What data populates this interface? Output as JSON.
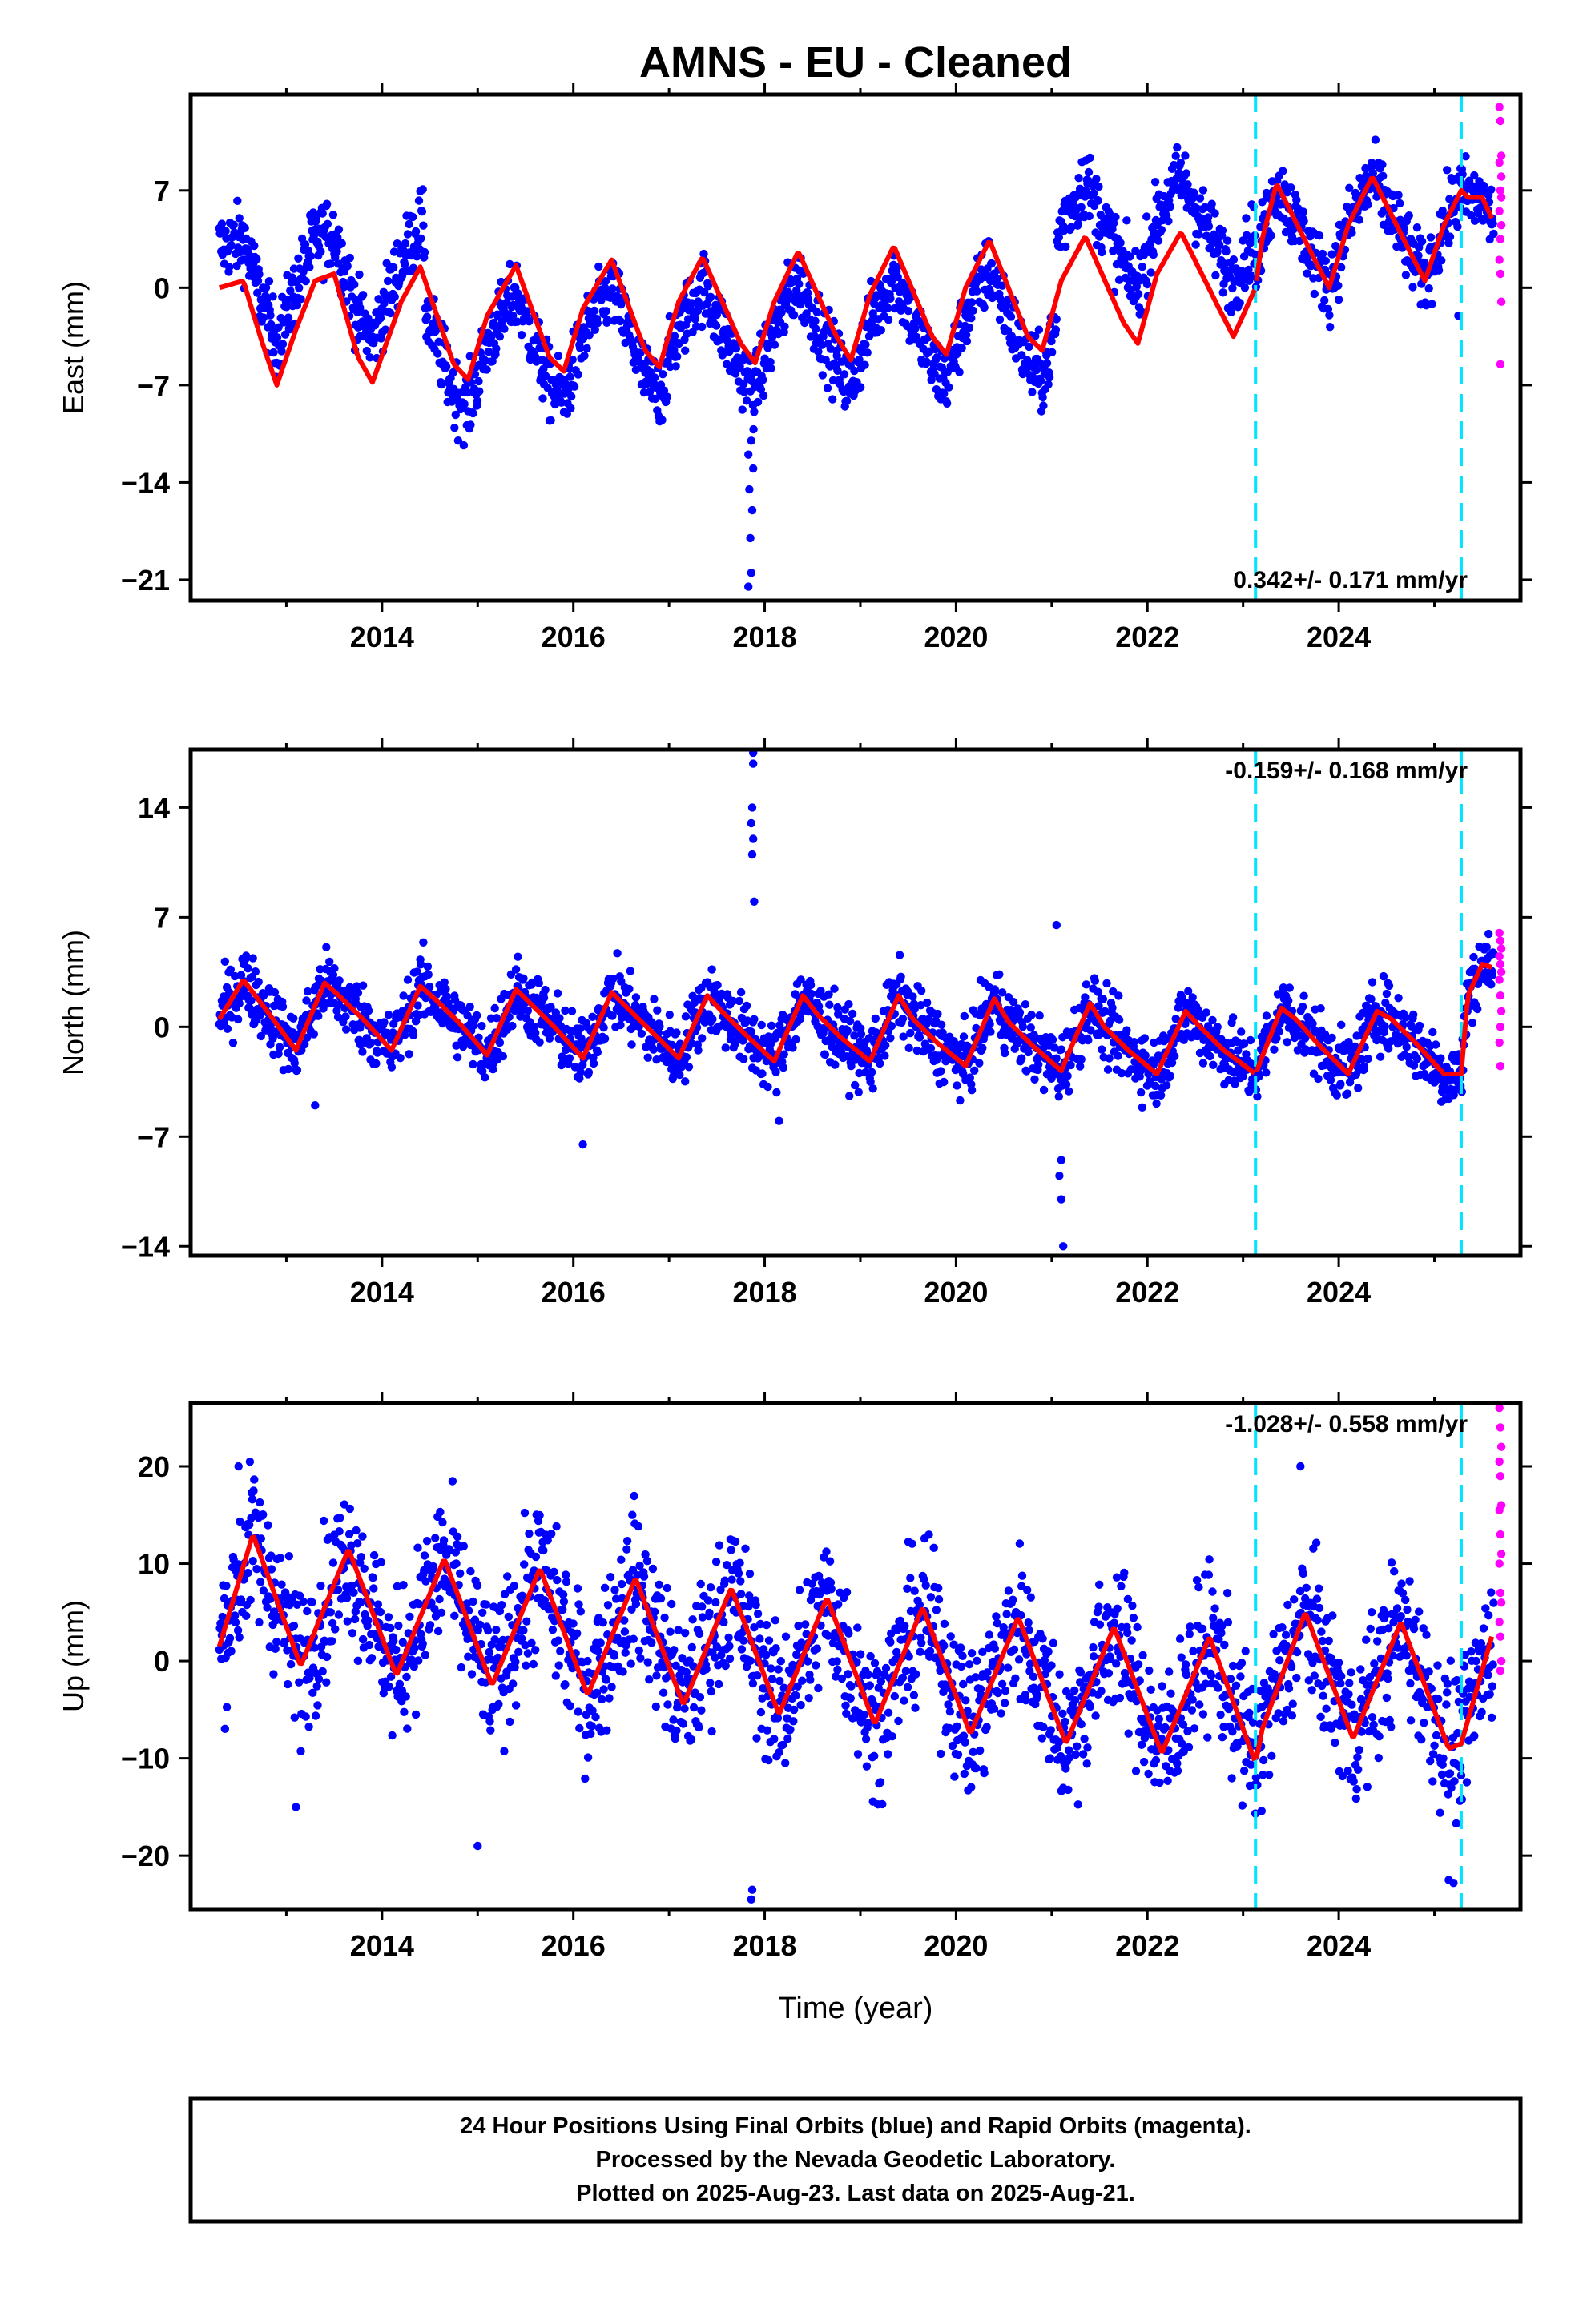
{
  "colors": {
    "final": "#0000ff",
    "rapid": "#ff00ff",
    "model": "#ff0000",
    "break": "#00e5ff",
    "frame": "#000000"
  },
  "chart_data": {
    "title": "AMNS  - EU - Cleaned",
    "xlabel": "Time (year)",
    "xlim": [
      2012.0,
      2025.9
    ],
    "x_ticks": [
      2014,
      2016,
      2018,
      2020,
      2022,
      2024
    ],
    "x_ticklabels": [
      "2014",
      "2016",
      "2018",
      "2020",
      "2022",
      "2024"
    ],
    "breaks": [
      2023.13,
      2025.28
    ],
    "panels": [
      {
        "type": "scatter",
        "ylabel": "East (mm)",
        "ylim": [
          -22.5,
          13.9
        ],
        "y_ticks": [
          7,
          0,
          -7,
          -14,
          -21
        ],
        "y_ticklabels": [
          "7",
          "0",
          "−7",
          "−14",
          "−21"
        ],
        "rate": "0.342+/- 0.171 mm/yr",
        "rate_position": "bottom-right",
        "model": {
          "x": [
            2012.3,
            2012.55,
            2012.75,
            2012.9,
            2013.1,
            2013.3,
            2013.5,
            2013.75,
            2013.9,
            2014.2,
            2014.4,
            2014.75,
            2014.9,
            2015.1,
            2015.4,
            2015.75,
            2015.9,
            2016.1,
            2016.4,
            2016.75,
            2016.9,
            2017.1,
            2017.35,
            2017.75,
            2017.9,
            2018.1,
            2018.35,
            2018.75,
            2018.9,
            2019.1,
            2019.35,
            2019.75,
            2019.9,
            2020.1,
            2020.35,
            2020.75,
            2020.9,
            2021.1,
            2021.35,
            2021.75,
            2021.9,
            2022.1,
            2022.35,
            2022.75,
            2022.9,
            2023.13,
            2023.2,
            2023.35,
            2023.75,
            2023.9,
            2024.1,
            2024.35,
            2024.75,
            2024.9,
            2025.1,
            2025.28,
            2025.35,
            2025.5,
            2025.6
          ],
          "y": [
            0.0,
            0.5,
            -4.0,
            -7.0,
            -3.0,
            0.5,
            1.0,
            -5.0,
            -6.8,
            -1.0,
            1.5,
            -5.5,
            -6.6,
            -2.0,
            1.6,
            -5.0,
            -6.0,
            -1.5,
            2.0,
            -4.5,
            -5.7,
            -1.0,
            2.2,
            -4.0,
            -5.4,
            -1.0,
            2.6,
            -3.5,
            -5.2,
            -0.5,
            3.0,
            -3.5,
            -4.8,
            0.0,
            3.4,
            -3.5,
            -4.5,
            0.5,
            3.7,
            -2.5,
            -4.0,
            1.0,
            4.0,
            -1.5,
            -3.5,
            0.0,
            3.5,
            7.5,
            2.0,
            0.0,
            4.5,
            8.0,
            2.5,
            0.5,
            4.5,
            7.0,
            6.5,
            6.5,
            5.0
          ],
          "noise": 1.5,
          "offsets": [
            [
              2012.3,
              2014.45,
              3.0
            ],
            [
              2014.45,
              2021.05,
              -2.0
            ],
            [
              2021.05,
              2023.13,
              4.0
            ]
          ]
        },
        "outliers": [
          [
            2017.83,
            -21.5
          ],
          [
            2017.86,
            -20.5
          ],
          [
            2017.85,
            -18.0
          ],
          [
            2017.87,
            -16.0
          ],
          [
            2017.84,
            -14.5
          ],
          [
            2017.88,
            -13.0
          ],
          [
            2017.83,
            -12.0
          ],
          [
            2017.86,
            -11.0
          ],
          [
            2025.25,
            -2.0
          ]
        ],
        "rapid": [
          [
            2025.68,
            13.0
          ],
          [
            2025.69,
            12.0
          ],
          [
            2025.7,
            9.5
          ],
          [
            2025.68,
            9.0
          ],
          [
            2025.7,
            8.0
          ],
          [
            2025.69,
            7.0
          ],
          [
            2025.7,
            6.5
          ],
          [
            2025.68,
            5.5
          ],
          [
            2025.7,
            4.5
          ],
          [
            2025.69,
            3.5
          ],
          [
            2025.68,
            2.0
          ],
          [
            2025.69,
            1.0
          ],
          [
            2025.7,
            -1.0
          ],
          [
            2025.69,
            -5.5
          ]
        ]
      },
      {
        "type": "scatter",
        "ylabel": "North (mm)",
        "ylim": [
          -14.6,
          17.7
        ],
        "y_ticks": [
          14,
          7,
          0,
          -7,
          -14
        ],
        "y_ticklabels": [
          "14",
          "7",
          "0",
          "−7",
          "−14"
        ],
        "rate": "-0.159+/- 0.168 mm/yr",
        "rate_position": "top-right",
        "model": {
          "x": [
            2012.3,
            2012.55,
            2012.8,
            2013.1,
            2013.4,
            2013.55,
            2013.8,
            2014.1,
            2014.4,
            2014.55,
            2014.8,
            2015.1,
            2015.4,
            2015.55,
            2015.8,
            2016.1,
            2016.4,
            2016.55,
            2016.8,
            2017.1,
            2017.4,
            2017.55,
            2017.8,
            2018.1,
            2018.4,
            2018.55,
            2018.8,
            2019.1,
            2019.4,
            2019.55,
            2019.8,
            2020.1,
            2020.4,
            2020.55,
            2020.8,
            2021.1,
            2021.4,
            2021.55,
            2021.8,
            2022.1,
            2022.4,
            2022.55,
            2022.8,
            2023.13,
            2023.4,
            2023.55,
            2023.8,
            2024.1,
            2024.4,
            2024.55,
            2024.8,
            2025.1,
            2025.28,
            2025.35,
            2025.5,
            2025.6
          ],
          "y": [
            0.5,
            3.0,
            1.0,
            -1.5,
            2.8,
            2.0,
            0.5,
            -1.5,
            2.6,
            1.8,
            0.3,
            -1.8,
            2.4,
            1.5,
            0.0,
            -2.0,
            2.2,
            1.3,
            -0.2,
            -2.0,
            2.0,
            1.0,
            -0.5,
            -2.2,
            2.0,
            0.8,
            -0.7,
            -2.2,
            2.0,
            0.5,
            -1.0,
            -2.5,
            1.8,
            0.3,
            -1.2,
            -2.8,
            1.5,
            0.0,
            -1.5,
            -3.0,
            1.0,
            0.0,
            -1.5,
            -3.0,
            1.2,
            0.5,
            -1.2,
            -3.0,
            1.0,
            0.5,
            -1.0,
            -3.0,
            -3.0,
            2.0,
            4.0,
            3.8
          ],
          "noise": 1.3
        },
        "outliers": [
          [
            2017.88,
            17.5
          ],
          [
            2017.88,
            16.8
          ],
          [
            2017.87,
            14.0
          ],
          [
            2017.86,
            13.0
          ],
          [
            2017.88,
            12.0
          ],
          [
            2017.87,
            11.0
          ],
          [
            2017.89,
            8.0
          ],
          [
            2021.05,
            6.5
          ],
          [
            2021.1,
            -8.5
          ],
          [
            2021.08,
            -9.5
          ],
          [
            2021.1,
            -11.0
          ],
          [
            2021.12,
            -14.0
          ],
          [
            2016.1,
            -7.5
          ],
          [
            2018.15,
            -6.0
          ],
          [
            2013.3,
            -5.0
          ]
        ],
        "rapid": [
          [
            2025.68,
            6.0
          ],
          [
            2025.69,
            5.5
          ],
          [
            2025.7,
            5.0
          ],
          [
            2025.68,
            4.5
          ],
          [
            2025.69,
            4.0
          ],
          [
            2025.7,
            3.5
          ],
          [
            2025.68,
            3.0
          ],
          [
            2025.69,
            2.0
          ],
          [
            2025.7,
            1.0
          ],
          [
            2025.69,
            0.0
          ],
          [
            2025.68,
            -1.0
          ],
          [
            2025.69,
            -2.5
          ]
        ]
      },
      {
        "type": "scatter",
        "ylabel": "Up (mm)",
        "ylim": [
          -25.5,
          26.5
        ],
        "y_ticks": [
          20,
          10,
          0,
          -10,
          -20
        ],
        "y_ticklabels": [
          "20",
          "10",
          "0",
          "−10",
          "−20"
        ],
        "rate": "-1.028+/- 0.558 mm/yr",
        "rate_position": "top-right",
        "model": {
          "x": [
            2012.3,
            2012.65,
            2013.15,
            2013.65,
            2014.15,
            2014.65,
            2015.15,
            2015.65,
            2016.15,
            2016.65,
            2017.15,
            2017.65,
            2018.15,
            2018.65,
            2019.15,
            2019.65,
            2020.15,
            2020.65,
            2021.15,
            2021.65,
            2022.15,
            2022.65,
            2023.13,
            2023.2,
            2023.65,
            2024.15,
            2024.65,
            2025.15,
            2025.28,
            2025.6
          ],
          "y": [
            1.5,
            13.0,
            -0.5,
            11.5,
            -1.5,
            10.5,
            -2.5,
            9.5,
            -3.5,
            8.5,
            -4.5,
            7.5,
            -5.5,
            6.5,
            -6.5,
            5.5,
            -7.5,
            4.5,
            -8.5,
            3.5,
            -9.5,
            2.5,
            -10.5,
            -7.0,
            5.0,
            -8.0,
            4.0,
            -9.0,
            -8.5,
            2.5
          ],
          "noise": 4.5
        },
        "outliers": [
          [
            2017.86,
            -24.5
          ],
          [
            2017.87,
            -23.5
          ],
          [
            2025.15,
            -22.5
          ],
          [
            2025.2,
            -22.8
          ],
          [
            2013.1,
            -15.0
          ],
          [
            2015.0,
            -19.0
          ],
          [
            2023.6,
            20.0
          ],
          [
            2012.5,
            20.0
          ]
        ],
        "rapid": [
          [
            2025.68,
            26.0
          ],
          [
            2025.69,
            24.0
          ],
          [
            2025.7,
            22.0
          ],
          [
            2025.68,
            20.5
          ],
          [
            2025.69,
            19.0
          ],
          [
            2025.7,
            16.0
          ],
          [
            2025.68,
            15.5
          ],
          [
            2025.69,
            13.0
          ],
          [
            2025.7,
            11.0
          ],
          [
            2025.68,
            10.0
          ],
          [
            2025.69,
            7.0
          ],
          [
            2025.7,
            6.0
          ],
          [
            2025.68,
            4.0
          ],
          [
            2025.69,
            2.5
          ],
          [
            2025.7,
            0.0
          ],
          [
            2025.69,
            -1.0
          ]
        ]
      }
    ]
  },
  "footer": {
    "line1": "24 Hour Positions Using Final Orbits (blue) and Rapid Orbits (magenta).",
    "line2": "Processed by the Nevada Geodetic Laboratory.",
    "line3": "Plotted on 2025-Aug-23. Last data on 2025-Aug-21."
  }
}
